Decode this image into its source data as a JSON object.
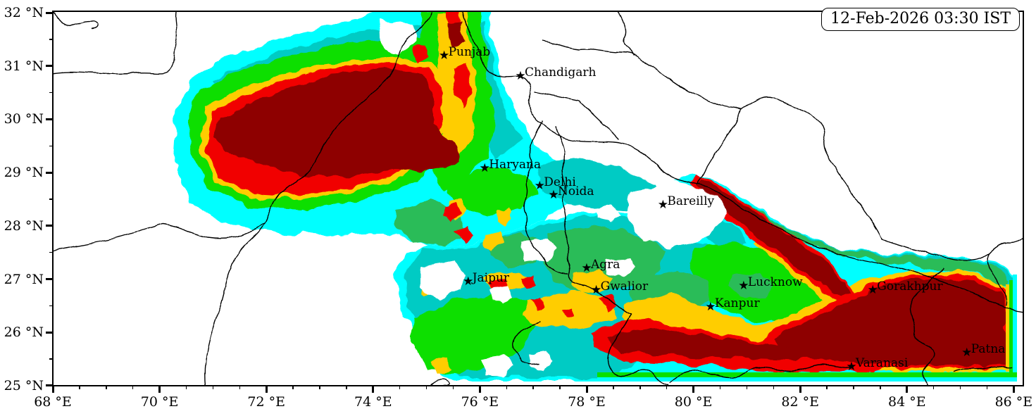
{
  "figure": {
    "timestamp": "12-Feb-2026 03:30 IST",
    "background": "#ffffff",
    "frame_color": "#000000",
    "boundary_color": "#000000"
  },
  "axes": {
    "x": {
      "unit": "°E",
      "minor_step": 0.5,
      "major_ticks": [
        {
          "lon": 68,
          "label": "68 °E"
        },
        {
          "lon": 70,
          "label": "70 °E"
        },
        {
          "lon": 72,
          "label": "72 °E"
        },
        {
          "lon": 74,
          "label": "74 °E"
        },
        {
          "lon": 76,
          "label": "76 °E"
        },
        {
          "lon": 78,
          "label": "78 °E"
        },
        {
          "lon": 80,
          "label": "80 °E"
        },
        {
          "lon": 82,
          "label": "82 °E"
        },
        {
          "lon": 84,
          "label": "84 °E"
        },
        {
          "lon": 86,
          "label": "86 °E"
        }
      ]
    },
    "y": {
      "unit": "°N",
      "minor_step": 0.5,
      "major_ticks": [
        {
          "lat": 32,
          "label": "32 °N"
        },
        {
          "lat": 31,
          "label": "31 °N"
        },
        {
          "lat": 30,
          "label": "30 °N"
        },
        {
          "lat": 29,
          "label": "29 °N"
        },
        {
          "lat": 28,
          "label": "28 °N"
        },
        {
          "lat": 27,
          "label": "27 °N"
        },
        {
          "lat": 26,
          "label": "26 °N"
        },
        {
          "lat": 25,
          "label": "25 °N"
        }
      ]
    }
  },
  "palette": [
    {
      "level": 0,
      "name": "clear",
      "color": "#ffffff"
    },
    {
      "level": 1,
      "name": "cyan",
      "color": "#00ffff"
    },
    {
      "level": 2,
      "name": "teal",
      "color": "#00cbc4"
    },
    {
      "level": 3,
      "name": "green-medium",
      "color": "#2cbc58"
    },
    {
      "level": 4,
      "name": "green-bright",
      "color": "#0adf00"
    },
    {
      "level": 5,
      "name": "yellow",
      "color": "#ffcd00"
    },
    {
      "level": 6,
      "name": "red",
      "color": "#f10000"
    },
    {
      "level": 7,
      "name": "dark-red",
      "color": "#8e0000"
    }
  ],
  "marker_glyph": "★",
  "cities": [
    {
      "name": "Punjab",
      "lon": 75.33,
      "lat": 31.18
    },
    {
      "name": "Chandigarh",
      "lon": 76.76,
      "lat": 30.8
    },
    {
      "name": "Haryana",
      "lon": 76.09,
      "lat": 29.07
    },
    {
      "name": "Delhi",
      "lon": 77.12,
      "lat": 28.74
    },
    {
      "name": "Noida",
      "lon": 77.38,
      "lat": 28.57
    },
    {
      "name": "Bareilly",
      "lon": 79.43,
      "lat": 28.38
    },
    {
      "name": "Jaipur",
      "lon": 75.78,
      "lat": 26.94
    },
    {
      "name": "Agra",
      "lon": 78.0,
      "lat": 27.19
    },
    {
      "name": "Gwalior",
      "lon": 78.18,
      "lat": 26.78
    },
    {
      "name": "Lucknow",
      "lon": 80.94,
      "lat": 26.86
    },
    {
      "name": "Kanpur",
      "lon": 80.32,
      "lat": 26.47
    },
    {
      "name": "Gorakhpur",
      "lon": 83.36,
      "lat": 26.78
    },
    {
      "name": "Varanasi",
      "lon": 82.96,
      "lat": 25.34
    },
    {
      "name": "Patna",
      "lon": 85.12,
      "lat": 25.61
    }
  ]
}
